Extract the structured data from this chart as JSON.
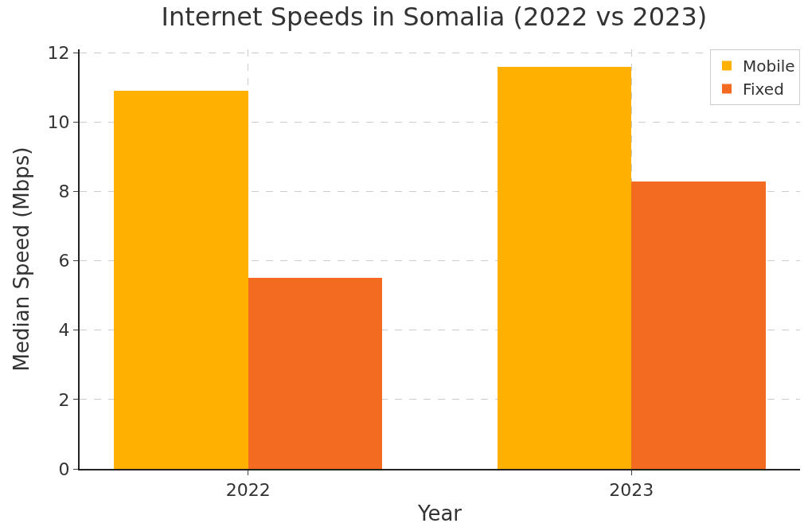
{
  "chart_data": {
    "type": "bar",
    "title": "Internet Speeds in Somalia (2022 vs 2023)",
    "xlabel": "Year",
    "ylabel": "Median Speed (Mbps)",
    "categories": [
      "2022",
      "2023"
    ],
    "series": [
      {
        "name": "Mobile",
        "color": "#ffb000",
        "values": [
          10.9,
          11.6
        ]
      },
      {
        "name": "Fixed",
        "color": "#f26b21",
        "values": [
          5.5,
          8.3
        ]
      }
    ],
    "ylim": [
      0,
      12.1
    ],
    "yticks": [
      0,
      2,
      4,
      6,
      8,
      10,
      12
    ],
    "grid": true,
    "legend": "top right"
  }
}
